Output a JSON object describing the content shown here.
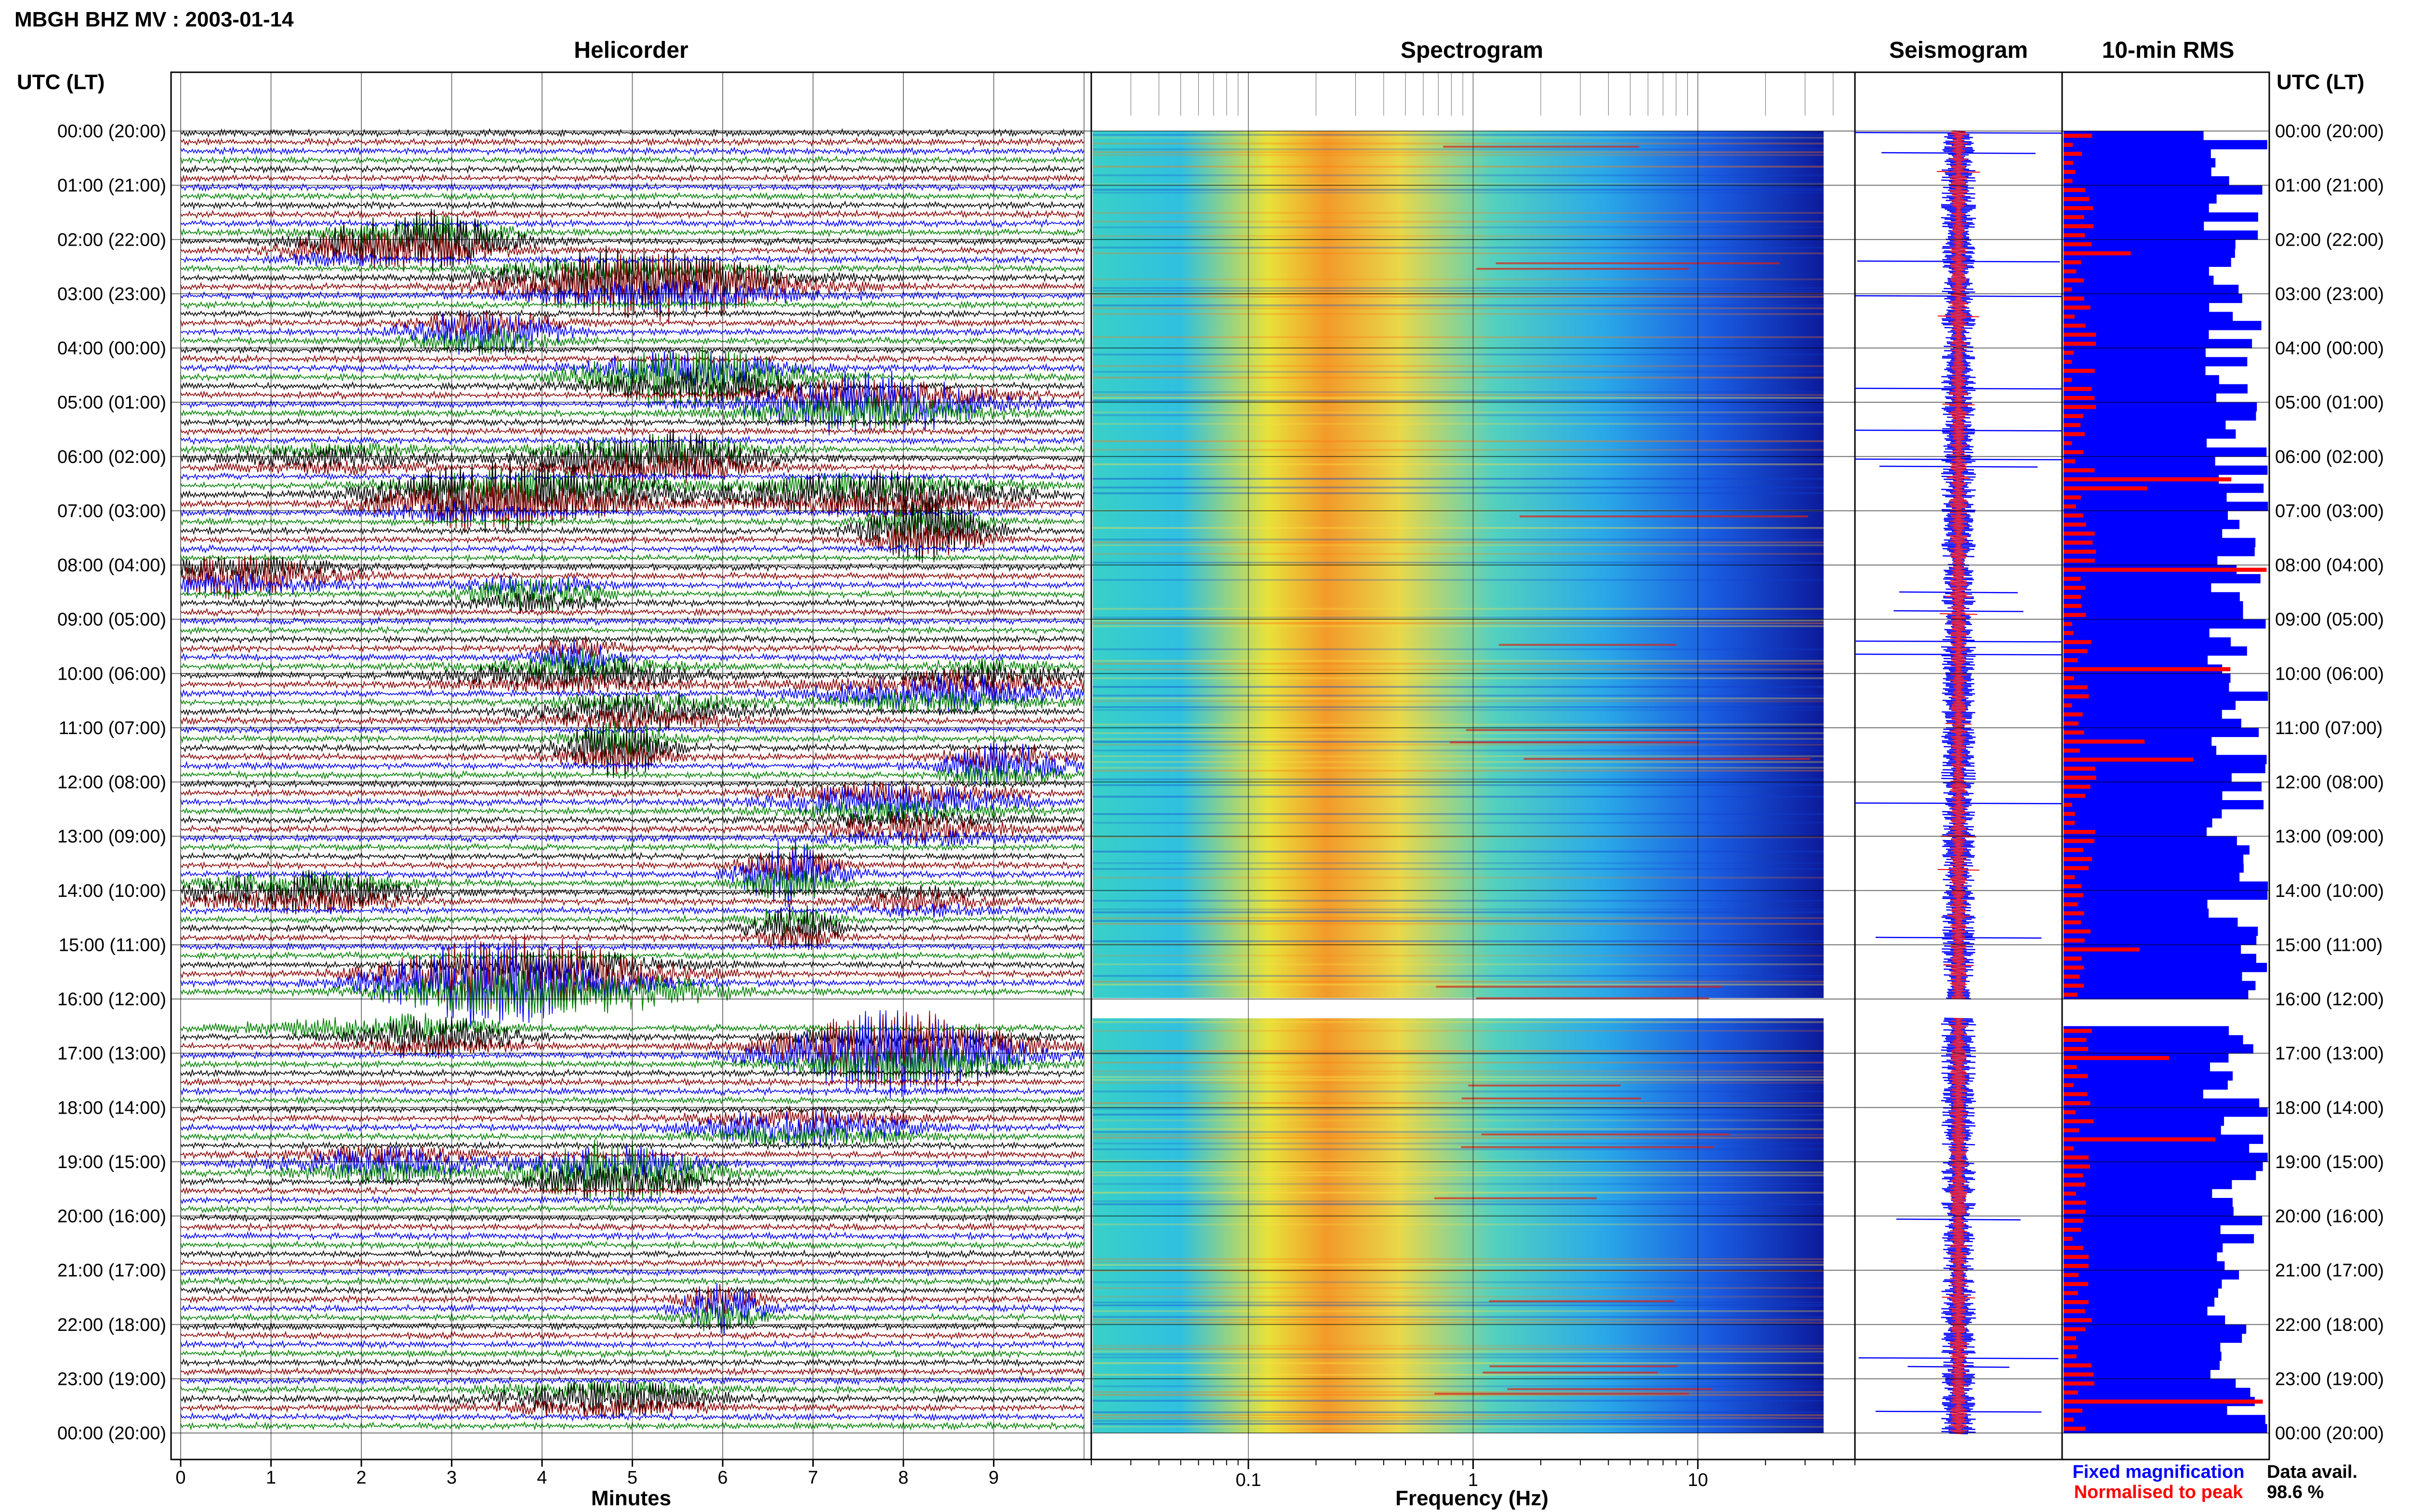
{
  "header": {
    "title": "MBGH BHZ MV : 2003-01-14"
  },
  "panels": {
    "helicorder": "Helicorder",
    "spectrogram": "Spectrogram",
    "seismogram": "Seismogram",
    "rms": "10-min RMS"
  },
  "time_axis": {
    "heading": "UTC (LT)",
    "labels": [
      "00:00 (20:00)",
      "01:00 (21:00)",
      "02:00 (22:00)",
      "03:00 (23:00)",
      "04:00 (00:00)",
      "05:00 (01:00)",
      "06:00 (02:00)",
      "07:00 (03:00)",
      "08:00 (04:00)",
      "09:00 (05:00)",
      "10:00 (06:00)",
      "11:00 (07:00)",
      "12:00 (08:00)",
      "13:00 (09:00)",
      "14:00 (10:00)",
      "15:00 (11:00)",
      "16:00 (12:00)",
      "17:00 (13:00)",
      "18:00 (14:00)",
      "19:00 (15:00)",
      "20:00 (16:00)",
      "21:00 (17:00)",
      "22:00 (18:00)",
      "23:00 (19:00)",
      "00:00 (20:00)"
    ]
  },
  "helicorder_axis": {
    "label": "Minutes",
    "ticks": [
      "0",
      "1",
      "2",
      "3",
      "4",
      "5",
      "6",
      "7",
      "8",
      "9"
    ],
    "colors": [
      "#000000",
      "#8b0000",
      "#0000ff",
      "#008000"
    ]
  },
  "spectrogram_axis": {
    "label": "Frequency (Hz)",
    "ticks": [
      "0.1",
      "1",
      "10"
    ]
  },
  "legend": {
    "fixed": "Fixed magnification",
    "normalised": "Normalised to peak",
    "fixed_color": "#0000ff",
    "normalised_color": "#ff0000",
    "avail_label": "Data avail.",
    "avail_value": "98.6 %"
  },
  "chart_data": [
    {
      "type": "line",
      "title": "Helicorder",
      "xlabel": "Minutes",
      "xlim": [
        0,
        10
      ],
      "hours": 24,
      "gap_hour": 16,
      "grid": true
    },
    {
      "type": "heatmap",
      "title": "Spectrogram",
      "xlabel": "Frequency (Hz)",
      "xscale": "log",
      "xlim": [
        0.02,
        50
      ]
    },
    {
      "type": "line",
      "title": "Seismogram",
      "series": [
        {
          "name": "Fixed magnification",
          "color": "#0000ff"
        },
        {
          "name": "Normalised to peak",
          "color": "#ff0000"
        }
      ]
    },
    {
      "type": "bar",
      "title": "10-min RMS",
      "orientation": "horizontal",
      "series": [
        {
          "name": "Fixed magnification",
          "color": "#0000ff"
        },
        {
          "name": "Normalised to peak",
          "color": "#ff0000"
        }
      ]
    }
  ]
}
